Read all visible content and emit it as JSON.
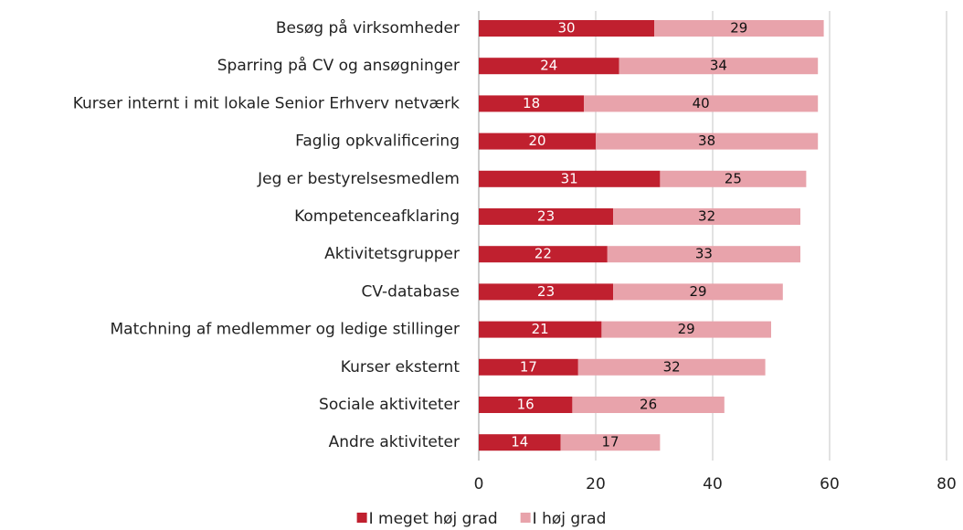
{
  "chart_data": {
    "type": "stacked-bar-horizontal",
    "categories": [
      "Besøg på virksomheder",
      "Sparring på CV og ansøgninger",
      "Kurser internt i mit lokale Senior Erhverv netværk",
      "Faglig opkvalificering",
      "Jeg er bestyrelsesmedlem",
      "Kompetenceafklaring",
      "Aktivitetsgrupper",
      "CV-database",
      "Matchning af medlemmer og ledige stillinger",
      "Kurser eksternt",
      "Sociale aktiviteter",
      "Andre aktiviteter"
    ],
    "series": [
      {
        "name": "I meget høj grad",
        "color": "#c0202f",
        "values": [
          30,
          24,
          18,
          20,
          31,
          23,
          22,
          23,
          21,
          17,
          16,
          14
        ]
      },
      {
        "name": "I høj grad",
        "color": "#e8a3ab",
        "values": [
          29,
          34,
          40,
          38,
          25,
          32,
          33,
          29,
          29,
          32,
          26,
          17
        ]
      }
    ],
    "xlim": [
      0,
      80
    ],
    "xticks": [
      0,
      20,
      40,
      60,
      80
    ],
    "grid": true,
    "legend": "bottom"
  }
}
